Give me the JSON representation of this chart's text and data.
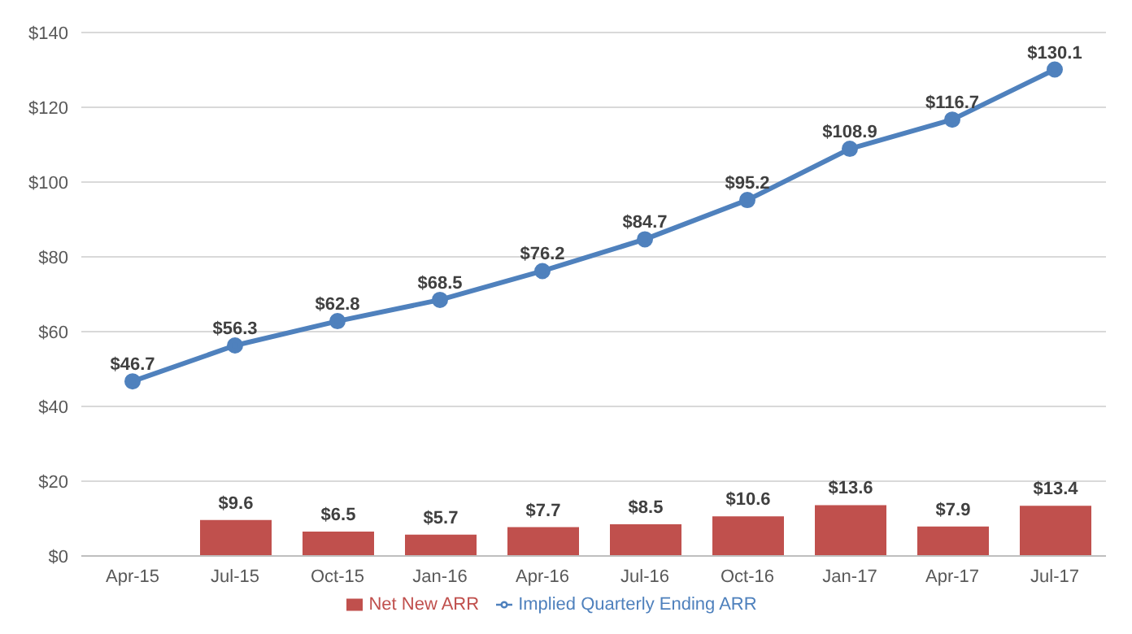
{
  "chart_data": {
    "type": "bar",
    "categories": [
      "Apr-15",
      "Jul-15",
      "Oct-15",
      "Jan-16",
      "Apr-16",
      "Jul-16",
      "Oct-16",
      "Jan-17",
      "Apr-17",
      "Jul-17"
    ],
    "series": [
      {
        "name": "Net New ARR",
        "color": "#c0504d",
        "values": [
          null,
          9.6,
          6.5,
          5.7,
          7.7,
          8.5,
          10.6,
          13.6,
          7.9,
          13.4
        ],
        "value_labels": [
          null,
          "$9.6",
          "$6.5",
          "$5.7",
          "$7.7",
          "$8.5",
          "$10.6",
          "$13.6",
          "$7.9",
          "$13.4"
        ]
      },
      {
        "name": "Implied Quarterly Ending ARR",
        "type": "line",
        "color": "#4f81bd",
        "values": [
          46.7,
          56.3,
          62.8,
          68.5,
          76.2,
          84.7,
          95.2,
          108.9,
          116.7,
          130.1
        ],
        "value_labels": [
          "$46.7",
          "$56.3",
          "$62.8",
          "$68.5",
          "$76.2",
          "$84.7",
          "$95.2",
          "$108.9",
          "$116.7",
          "$130.1"
        ]
      }
    ],
    "ylim": [
      0,
      140
    ],
    "yticks": [
      {
        "value": 0,
        "label": "$0"
      },
      {
        "value": 20,
        "label": "$20"
      },
      {
        "value": 40,
        "label": "$40"
      },
      {
        "value": 60,
        "label": "$60"
      },
      {
        "value": 80,
        "label": "$80"
      },
      {
        "value": 100,
        "label": "$100"
      },
      {
        "value": 120,
        "label": "$120"
      },
      {
        "value": 140,
        "label": "$140"
      }
    ],
    "grid": "y",
    "legend": "bottom",
    "marker": "circle",
    "line_style": "solid"
  }
}
